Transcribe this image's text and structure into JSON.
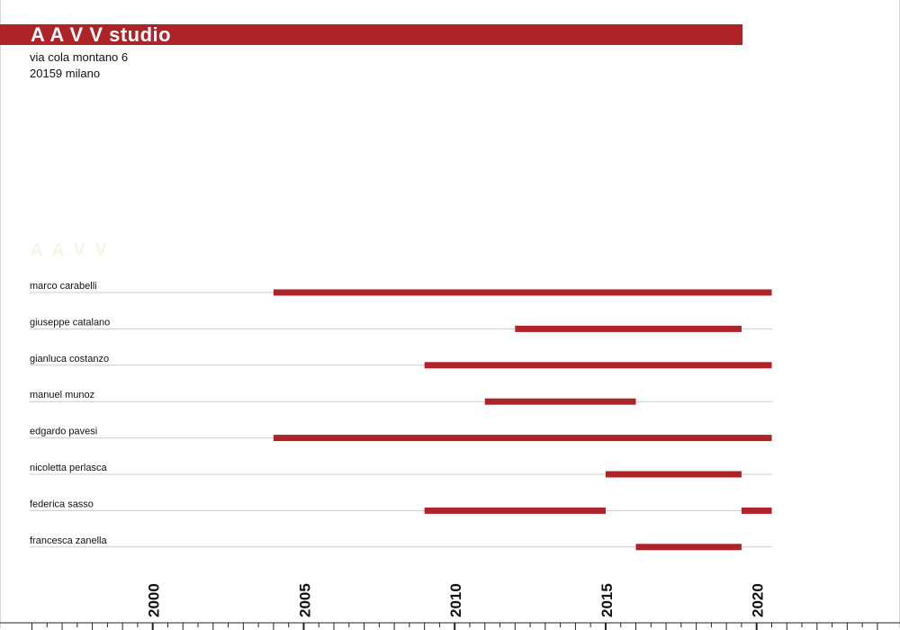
{
  "header": {
    "title": "A A V V studio",
    "address_line1": "via cola montano 6",
    "address_line2": "20159 milano",
    "watermark": "A A V V"
  },
  "colors": {
    "accent": "#ad2327",
    "text": "#111111",
    "row_line": "#cccccc",
    "watermark": "#f7f3e6"
  },
  "chart_data": {
    "type": "bar",
    "orientation": "horizontal-timeline",
    "title": "",
    "xlabel": "",
    "ylabel": "",
    "xlim": [
      1996,
      2024
    ],
    "tick_labels": [
      "2000",
      "2005",
      "2010",
      "2015",
      "2020"
    ],
    "minor_tick_step": 0.5,
    "grid": false,
    "legend": "none",
    "series": [
      {
        "name": "marco carabelli",
        "periods": [
          [
            2004.0,
            2020.5
          ]
        ]
      },
      {
        "name": "giuseppe catalano",
        "periods": [
          [
            2012.0,
            2019.5
          ]
        ]
      },
      {
        "name": "gianluca costanzo",
        "periods": [
          [
            2009.0,
            2020.5
          ]
        ]
      },
      {
        "name": "manuel munoz",
        "periods": [
          [
            2011.0,
            2016.0
          ]
        ]
      },
      {
        "name": "edgardo pavesi",
        "periods": [
          [
            2004.0,
            2020.5
          ]
        ]
      },
      {
        "name": "nicoletta perlasca",
        "periods": [
          [
            2015.0,
            2019.5
          ]
        ]
      },
      {
        "name": "federica sasso",
        "periods": [
          [
            2009.0,
            2015.0
          ],
          [
            2019.5,
            2020.5
          ]
        ]
      },
      {
        "name": "francesca zanella",
        "periods": [
          [
            2016.0,
            2019.5
          ]
        ]
      }
    ]
  }
}
